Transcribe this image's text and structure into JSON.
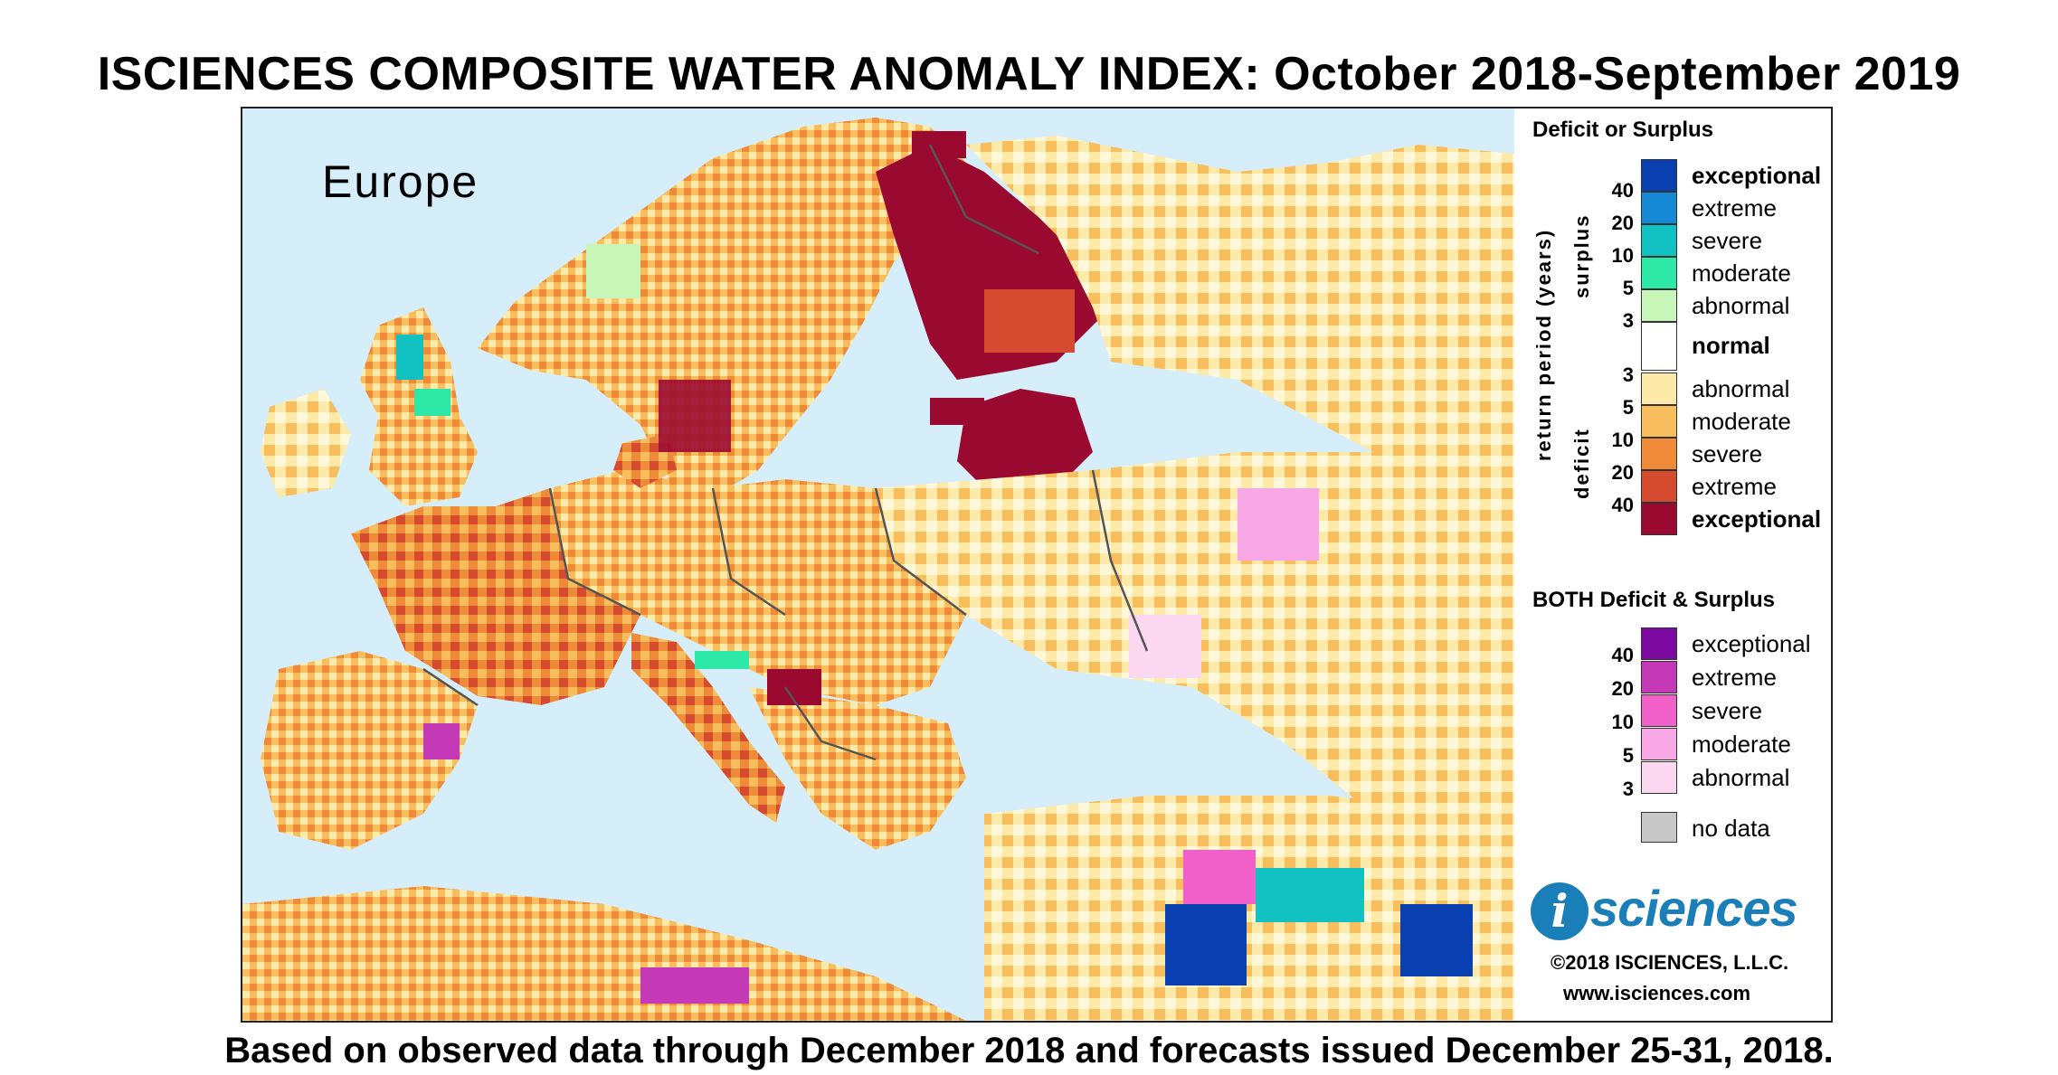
{
  "title": "ISCIENCES COMPOSITE WATER ANOMALY INDEX: October 2018-September 2019",
  "subtitle": "Based on observed data through December 2018 and forecasts issued December 25-31, 2018.",
  "map": {
    "region_label": "Europe",
    "colors": {
      "sea": "#d5eef9",
      "border": "#555555"
    }
  },
  "legend": {
    "heading1": "Deficit or Surplus",
    "return_period_label": "return period (years)",
    "surplus_label": "surplus",
    "deficit_label": "deficit",
    "surplus": [
      {
        "label": "exceptional",
        "color": "#0a3fb0",
        "bold": true
      },
      {
        "label": "extreme",
        "color": "#1689d6"
      },
      {
        "label": "severe",
        "color": "#12c2c2"
      },
      {
        "label": "moderate",
        "color": "#2de8a6"
      },
      {
        "label": "abnormal",
        "color": "#c8f5b8"
      }
    ],
    "surplus_nums": [
      "40",
      "20",
      "10",
      "5",
      "3"
    ],
    "normal": {
      "label": "normal",
      "color": "#ffffff"
    },
    "deficit_nums": [
      "3",
      "5",
      "10",
      "20",
      "40"
    ],
    "deficit": [
      {
        "label": "abnormal",
        "color": "#fde9a8"
      },
      {
        "label": "moderate",
        "color": "#f8bd5c"
      },
      {
        "label": "severe",
        "color": "#ef8a38"
      },
      {
        "label": "extreme",
        "color": "#d44b30"
      },
      {
        "label": "exceptional",
        "color": "#9a0a30",
        "bold": true
      }
    ],
    "heading2": "BOTH Deficit & Surplus",
    "both": [
      {
        "label": "exceptional",
        "color": "#7d0aa0"
      },
      {
        "label": "extreme",
        "color": "#c43ab6"
      },
      {
        "label": "severe",
        "color": "#f060c8"
      },
      {
        "label": "moderate",
        "color": "#f8a8e4"
      },
      {
        "label": "abnormal",
        "color": "#fcd8f0"
      }
    ],
    "both_nums": [
      "40",
      "20",
      "10",
      "5",
      "3"
    ],
    "nodata": {
      "label": "no data",
      "color": "#c8c8c8"
    }
  },
  "brand": {
    "logo_i": "i",
    "logo_text": "sciences",
    "copyright": "©2018 ISCIENCES, L.L.C.",
    "url": "www.isciences.com"
  }
}
